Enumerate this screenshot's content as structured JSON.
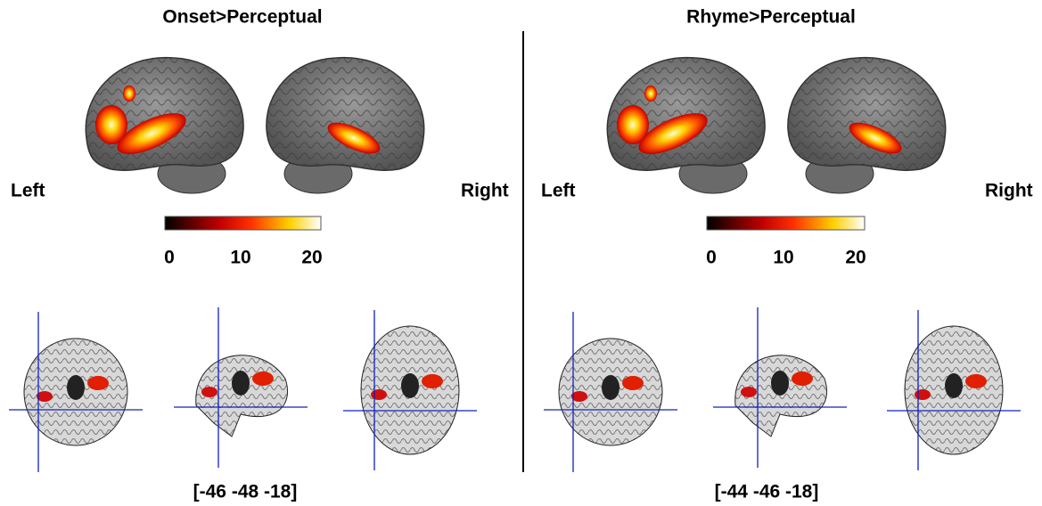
{
  "panels": [
    {
      "title": "Onset>Perceptual",
      "left_label": "Left",
      "right_label": "Right",
      "colorbar": {
        "range": [
          0,
          20
        ],
        "ticks": [
          0,
          10,
          20
        ]
      },
      "coordinates": "[-46 -48 -18]"
    },
    {
      "title": "Rhyme>Perceptual",
      "left_label": "Left",
      "right_label": "Right",
      "colorbar": {
        "range": [
          0,
          20
        ],
        "ticks": [
          0,
          10,
          20
        ]
      },
      "coordinates": "[-44 -46 -18]"
    }
  ]
}
